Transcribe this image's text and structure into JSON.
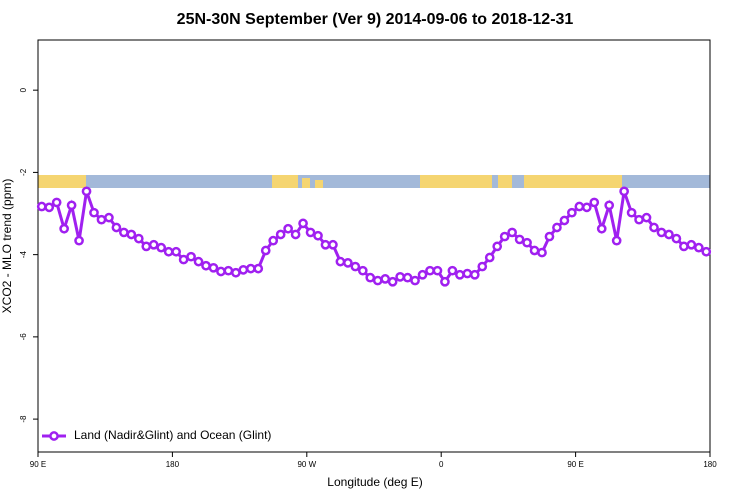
{
  "chart_data": {
    "type": "line",
    "title": "25N-30N September (Ver 9)   2014-09-06 to 2018-12-31",
    "xlabel": "Longitude (deg E)",
    "ylabel": "XCO2 - MLO trend (ppm)",
    "xlim": [
      90,
      540
    ],
    "ylim": [
      -8.8,
      1.22
    ],
    "xticks": [
      {
        "value": 90,
        "label": "90 E"
      },
      180,
      {
        "value": 270,
        "label": "90 W"
      },
      {
        "value": 360,
        "label": "0"
      },
      {
        "value": 450,
        "label": "90 E"
      },
      {
        "value": 540,
        "label": "180"
      }
    ],
    "yticks": [
      -8,
      -6,
      -4,
      -2,
      0
    ],
    "legend": "bottom-left",
    "x": [
      92.5,
      97.5,
      102.5,
      107.5,
      112.5,
      117.5,
      122.5,
      127.5,
      132.5,
      137.5,
      142.5,
      147.5,
      152.5,
      157.5,
      162.5,
      167.5,
      172.5,
      177.5,
      182.5,
      187.5,
      192.5,
      197.5,
      202.5,
      207.5,
      212.5,
      217.5,
      222.5,
      227.5,
      232.5,
      237.5,
      242.5,
      247.5,
      252.5,
      257.5,
      262.5,
      267.5,
      272.5,
      277.5,
      282.5,
      287.5,
      292.5,
      297.5,
      302.5,
      307.5,
      312.5,
      317.5,
      322.5,
      327.5,
      332.5,
      337.5,
      342.5,
      347.5,
      352.5,
      357.5,
      362.5,
      367.5,
      372.5,
      377.5,
      382.5,
      387.5,
      392.5,
      397.5,
      402.5,
      407.5,
      412.5,
      417.5,
      422.5,
      427.5,
      432.5,
      437.5,
      442.5,
      447.5,
      452.5,
      457.5,
      462.5,
      467.5,
      472.5,
      477.5,
      482.5,
      487.5,
      492.5,
      497.5,
      502.5,
      507.5,
      512.5,
      517.5,
      522.5,
      527.5,
      532.5,
      537.5
    ],
    "series": [
      {
        "name": "Land (Nadir&Glint) and Ocean (Glint)",
        "color": "#a020f0",
        "values": [
          -2.83,
          -2.85,
          -2.73,
          -3.37,
          -2.8,
          -3.66,
          -2.46,
          -2.98,
          -3.15,
          -3.1,
          -3.34,
          -3.46,
          -3.51,
          -3.61,
          -3.8,
          -3.76,
          -3.83,
          -3.93,
          -3.93,
          -4.12,
          -4.05,
          -4.17,
          -4.27,
          -4.32,
          -4.41,
          -4.39,
          -4.44,
          -4.37,
          -4.34,
          -4.34,
          -3.9,
          -3.66,
          -3.51,
          -3.37,
          -3.51,
          -3.24,
          -3.46,
          -3.54,
          -3.76,
          -3.76,
          -4.17,
          -4.2,
          -4.29,
          -4.39,
          -4.56,
          -4.63,
          -4.59,
          -4.66,
          -4.54,
          -4.56,
          -4.63,
          -4.49,
          -4.39,
          -4.39,
          -4.66,
          -4.39,
          -4.49,
          -4.46,
          -4.49,
          -4.29,
          -4.07,
          -3.8,
          -3.56,
          -3.46,
          -3.63,
          -3.71,
          -3.9,
          -3.95,
          -3.56,
          -3.34,
          -3.17,
          -2.98,
          -2.83,
          -2.85,
          -2.73,
          -3.37,
          -2.8,
          -3.66,
          -2.46,
          -2.98,
          -3.15,
          -3.1,
          -3.34,
          -3.46,
          -3.51,
          -3.61,
          -3.8,
          -3.76,
          -3.83,
          -3.93
        ]
      }
    ]
  }
}
